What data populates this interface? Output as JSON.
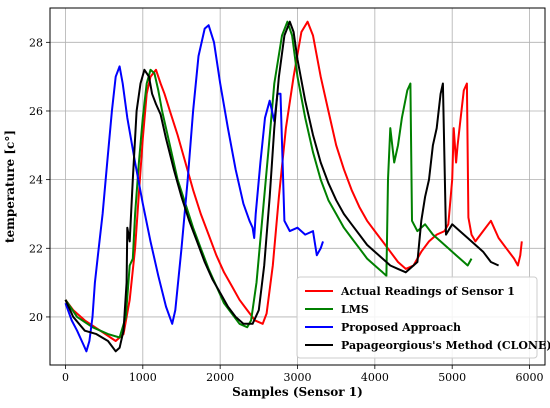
{
  "chart_data": {
    "type": "line",
    "title": "",
    "xlabel": "Samples (Sensor  1)",
    "ylabel": "temperature [c°]",
    "xlim": [
      -200,
      6200
    ],
    "ylim": [
      18.6,
      29.0
    ],
    "xticks": [
      0,
      1000,
      2000,
      3000,
      4000,
      5000,
      6000
    ],
    "yticks": [
      20,
      22,
      24,
      26,
      28
    ],
    "grid": true,
    "legend": {
      "position": "bottom-right"
    },
    "series": [
      {
        "name": "Actual Readings of Sensor 1",
        "color": "#ff0000",
        "points": [
          [
            0,
            20.5
          ],
          [
            100,
            20.2
          ],
          [
            250,
            19.9
          ],
          [
            450,
            19.6
          ],
          [
            650,
            19.3
          ],
          [
            750,
            19.5
          ],
          [
            830,
            20.5
          ],
          [
            900,
            22.0
          ],
          [
            950,
            23.6
          ],
          [
            1000,
            25.2
          ],
          [
            1050,
            26.5
          ],
          [
            1100,
            27.0
          ],
          [
            1170,
            27.2
          ],
          [
            1230,
            26.8
          ],
          [
            1280,
            26.5
          ],
          [
            1350,
            26.0
          ],
          [
            1450,
            25.3
          ],
          [
            1550,
            24.5
          ],
          [
            1650,
            23.7
          ],
          [
            1750,
            23.0
          ],
          [
            1850,
            22.4
          ],
          [
            1950,
            21.8
          ],
          [
            2050,
            21.3
          ],
          [
            2150,
            20.9
          ],
          [
            2250,
            20.5
          ],
          [
            2350,
            20.2
          ],
          [
            2450,
            19.9
          ],
          [
            2550,
            19.8
          ],
          [
            2600,
            20.1
          ],
          [
            2680,
            21.5
          ],
          [
            2760,
            23.5
          ],
          [
            2850,
            25.5
          ],
          [
            2950,
            27.0
          ],
          [
            3050,
            28.3
          ],
          [
            3130,
            28.6
          ],
          [
            3200,
            28.2
          ],
          [
            3300,
            27.0
          ],
          [
            3400,
            26.0
          ],
          [
            3500,
            25.0
          ],
          [
            3600,
            24.3
          ],
          [
            3700,
            23.7
          ],
          [
            3800,
            23.2
          ],
          [
            3900,
            22.8
          ],
          [
            4000,
            22.5
          ],
          [
            4100,
            22.2
          ],
          [
            4200,
            21.9
          ],
          [
            4300,
            21.6
          ],
          [
            4400,
            21.4
          ],
          [
            4500,
            21.5
          ],
          [
            4600,
            21.9
          ],
          [
            4700,
            22.2
          ],
          [
            4800,
            22.4
          ],
          [
            4900,
            22.5
          ],
          [
            4950,
            22.7
          ],
          [
            5000,
            24.0
          ],
          [
            5020,
            25.5
          ],
          [
            5050,
            24.5
          ],
          [
            5070,
            25.0
          ],
          [
            5100,
            25.6
          ],
          [
            5150,
            26.6
          ],
          [
            5190,
            26.8
          ],
          [
            5210,
            22.9
          ],
          [
            5250,
            22.4
          ],
          [
            5300,
            22.2
          ],
          [
            5400,
            22.5
          ],
          [
            5500,
            22.8
          ],
          [
            5600,
            22.3
          ],
          [
            5700,
            22.0
          ],
          [
            5800,
            21.7
          ],
          [
            5850,
            21.5
          ],
          [
            5880,
            21.8
          ],
          [
            5900,
            22.2
          ]
        ]
      },
      {
        "name": "LMS",
        "color": "#008000",
        "points": [
          [
            0,
            20.5
          ],
          [
            150,
            20.0
          ],
          [
            350,
            19.7
          ],
          [
            550,
            19.5
          ],
          [
            700,
            19.4
          ],
          [
            780,
            20.0
          ],
          [
            830,
            21.5
          ],
          [
            870,
            21.7
          ],
          [
            900,
            23.0
          ],
          [
            950,
            24.5
          ],
          [
            1000,
            25.8
          ],
          [
            1050,
            26.8
          ],
          [
            1100,
            27.2
          ],
          [
            1150,
            27.1
          ],
          [
            1200,
            26.6
          ],
          [
            1250,
            26.0
          ],
          [
            1350,
            25.0
          ],
          [
            1450,
            24.0
          ],
          [
            1550,
            23.3
          ],
          [
            1650,
            22.6
          ],
          [
            1750,
            22.0
          ],
          [
            1850,
            21.4
          ],
          [
            1950,
            20.9
          ],
          [
            2050,
            20.4
          ],
          [
            2150,
            20.1
          ],
          [
            2250,
            19.8
          ],
          [
            2350,
            19.7
          ],
          [
            2400,
            19.9
          ],
          [
            2470,
            21.0
          ],
          [
            2550,
            23.0
          ],
          [
            2630,
            25.0
          ],
          [
            2700,
            26.8
          ],
          [
            2800,
            28.2
          ],
          [
            2870,
            28.6
          ],
          [
            2930,
            28.2
          ],
          [
            3000,
            27.0
          ],
          [
            3100,
            25.8
          ],
          [
            3200,
            24.8
          ],
          [
            3300,
            24.0
          ],
          [
            3400,
            23.4
          ],
          [
            3500,
            23.0
          ],
          [
            3600,
            22.6
          ],
          [
            3700,
            22.3
          ],
          [
            3800,
            22.0
          ],
          [
            3900,
            21.7
          ],
          [
            4000,
            21.5
          ],
          [
            4100,
            21.3
          ],
          [
            4150,
            21.2
          ],
          [
            4170,
            24.0
          ],
          [
            4200,
            25.5
          ],
          [
            4250,
            24.5
          ],
          [
            4300,
            25.0
          ],
          [
            4350,
            25.8
          ],
          [
            4420,
            26.6
          ],
          [
            4460,
            26.8
          ],
          [
            4480,
            22.8
          ],
          [
            4550,
            22.5
          ],
          [
            4650,
            22.7
          ],
          [
            4750,
            22.4
          ],
          [
            4850,
            22.2
          ],
          [
            4950,
            22.0
          ],
          [
            5050,
            21.8
          ],
          [
            5150,
            21.6
          ],
          [
            5200,
            21.5
          ],
          [
            5250,
            21.7
          ]
        ]
      },
      {
        "name": "Proposed Approach",
        "color": "#0000ff",
        "points": [
          [
            0,
            20.4
          ],
          [
            80,
            19.9
          ],
          [
            150,
            19.6
          ],
          [
            230,
            19.2
          ],
          [
            270,
            19.0
          ],
          [
            310,
            19.3
          ],
          [
            350,
            20.0
          ],
          [
            380,
            21.0
          ],
          [
            430,
            22.0
          ],
          [
            480,
            23.0
          ],
          [
            540,
            24.5
          ],
          [
            600,
            26.0
          ],
          [
            650,
            27.0
          ],
          [
            700,
            27.3
          ],
          [
            740,
            26.8
          ],
          [
            800,
            25.8
          ],
          [
            900,
            24.5
          ],
          [
            1000,
            23.3
          ],
          [
            1100,
            22.2
          ],
          [
            1200,
            21.2
          ],
          [
            1300,
            20.3
          ],
          [
            1380,
            19.8
          ],
          [
            1420,
            20.2
          ],
          [
            1500,
            22.0
          ],
          [
            1580,
            24.0
          ],
          [
            1650,
            26.0
          ],
          [
            1720,
            27.6
          ],
          [
            1800,
            28.4
          ],
          [
            1850,
            28.5
          ],
          [
            1920,
            28.0
          ],
          [
            2000,
            26.8
          ],
          [
            2100,
            25.5
          ],
          [
            2200,
            24.3
          ],
          [
            2300,
            23.3
          ],
          [
            2380,
            22.8
          ],
          [
            2420,
            22.6
          ],
          [
            2440,
            22.3
          ],
          [
            2460,
            23.0
          ],
          [
            2520,
            24.5
          ],
          [
            2580,
            25.8
          ],
          [
            2640,
            26.3
          ],
          [
            2700,
            25.7
          ],
          [
            2740,
            26.5
          ],
          [
            2780,
            26.5
          ],
          [
            2830,
            22.8
          ],
          [
            2900,
            22.5
          ],
          [
            3000,
            22.6
          ],
          [
            3100,
            22.4
          ],
          [
            3200,
            22.5
          ],
          [
            3250,
            21.8
          ],
          [
            3300,
            22.0
          ],
          [
            3330,
            22.2
          ]
        ]
      },
      {
        "name": "Papageorgious's Method (CLONE)",
        "color": "#000000",
        "points": [
          [
            0,
            20.5
          ],
          [
            100,
            20.0
          ],
          [
            250,
            19.6
          ],
          [
            400,
            19.5
          ],
          [
            550,
            19.3
          ],
          [
            650,
            19.0
          ],
          [
            700,
            19.1
          ],
          [
            750,
            19.6
          ],
          [
            790,
            21.0
          ],
          [
            800,
            22.6
          ],
          [
            830,
            22.2
          ],
          [
            870,
            24.0
          ],
          [
            920,
            26.0
          ],
          [
            970,
            26.8
          ],
          [
            1020,
            27.2
          ],
          [
            1080,
            27.0
          ],
          [
            1120,
            26.5
          ],
          [
            1170,
            26.2
          ],
          [
            1230,
            25.9
          ],
          [
            1300,
            25.2
          ],
          [
            1400,
            24.3
          ],
          [
            1500,
            23.5
          ],
          [
            1600,
            22.8
          ],
          [
            1700,
            22.2
          ],
          [
            1800,
            21.6
          ],
          [
            1900,
            21.1
          ],
          [
            2000,
            20.7
          ],
          [
            2100,
            20.3
          ],
          [
            2200,
            20.0
          ],
          [
            2300,
            19.8
          ],
          [
            2420,
            19.8
          ],
          [
            2500,
            20.2
          ],
          [
            2570,
            21.5
          ],
          [
            2640,
            23.5
          ],
          [
            2700,
            25.5
          ],
          [
            2760,
            27.0
          ],
          [
            2830,
            28.2
          ],
          [
            2900,
            28.6
          ],
          [
            2950,
            28.3
          ],
          [
            3000,
            27.5
          ],
          [
            3100,
            26.3
          ],
          [
            3200,
            25.3
          ],
          [
            3300,
            24.5
          ],
          [
            3400,
            23.9
          ],
          [
            3500,
            23.4
          ],
          [
            3600,
            23.0
          ],
          [
            3700,
            22.7
          ],
          [
            3800,
            22.4
          ],
          [
            3900,
            22.1
          ],
          [
            4000,
            21.9
          ],
          [
            4100,
            21.7
          ],
          [
            4200,
            21.5
          ],
          [
            4300,
            21.4
          ],
          [
            4400,
            21.3
          ],
          [
            4500,
            21.5
          ],
          [
            4550,
            21.6
          ],
          [
            4600,
            22.8
          ],
          [
            4650,
            23.5
          ],
          [
            4700,
            24.0
          ],
          [
            4750,
            25.0
          ],
          [
            4800,
            25.5
          ],
          [
            4850,
            26.5
          ],
          [
            4880,
            26.8
          ],
          [
            4920,
            22.4
          ],
          [
            5000,
            22.7
          ],
          [
            5100,
            22.5
          ],
          [
            5200,
            22.3
          ],
          [
            5300,
            22.1
          ],
          [
            5400,
            21.9
          ],
          [
            5500,
            21.6
          ],
          [
            5600,
            21.5
          ]
        ]
      }
    ]
  }
}
